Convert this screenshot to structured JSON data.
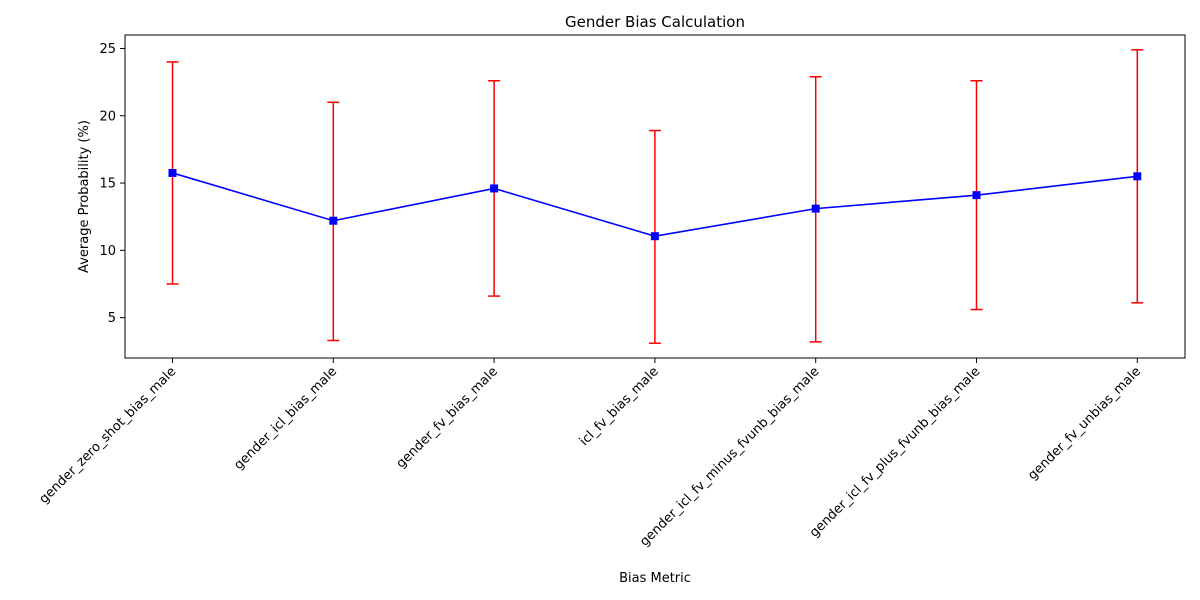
{
  "chart_data": {
    "type": "line",
    "title": "Gender Bias Calculation",
    "xlabel": "Bias Metric",
    "ylabel": "Average Probability (%)",
    "categories": [
      "gender_zero_shot_bias_male",
      "gender_icl_bias_male",
      "gender_fv_bias_male",
      "icl_fv_bias_male",
      "gender_icl_fv_minus_fvunb_bias_male",
      "gender_icl_fv_plus_fvunb_bias_male",
      "gender_fv_unbias_male"
    ],
    "series": [
      {
        "values": [
          15.75,
          12.2,
          14.6,
          11.05,
          13.1,
          14.1,
          15.5
        ],
        "error_low": [
          7.5,
          3.3,
          6.6,
          3.1,
          3.2,
          5.6,
          6.1
        ],
        "error_high": [
          24.0,
          21.0,
          22.6,
          18.9,
          22.9,
          22.6,
          24.9
        ],
        "line_color": "#0000ff",
        "marker": "square",
        "error_color": "#ff0000"
      }
    ],
    "ylim": [
      2,
      26
    ],
    "yticks": [
      5,
      10,
      15,
      20,
      25
    ],
    "grid": false,
    "legend": "none"
  }
}
